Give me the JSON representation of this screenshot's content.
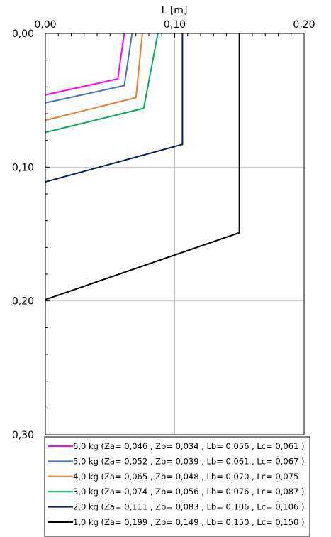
{
  "chart_data": {
    "type": "line",
    "x_axis_title": "L [m]",
    "x_ticks": [
      "0,00",
      "0,10",
      "0,20"
    ],
    "y_ticks": [
      "0,00",
      "0,10",
      "0,20",
      "0,30"
    ],
    "xlim": [
      0,
      0.2
    ],
    "ylim": [
      0,
      0.3
    ],
    "y_inverted": true,
    "x_axis_position": "top",
    "grid": true,
    "legend_position": "bottom-right",
    "series": [
      {
        "name": "6,0 kg (Za= 0,046 , Zb= 0,034 , Lb= 0,056 , Lc= 0,061 )",
        "color": "#ff00ff",
        "points": [
          [
            0.061,
            0.0
          ],
          [
            0.056,
            0.034
          ],
          [
            0.0,
            0.046
          ]
        ]
      },
      {
        "name": "5,0 kg (Za= 0,052 , Zb= 0,039 , Lb= 0,061 , Lc= 0,067 )",
        "color": "#4472c4",
        "points": [
          [
            0.067,
            0.0
          ],
          [
            0.061,
            0.039
          ],
          [
            0.0,
            0.052
          ]
        ]
      },
      {
        "name": "4,0 kg (Za= 0,065 , Zb= 0,048 , Lb= 0,070 , Lc= 0,075",
        "color": "#ed7d31",
        "points": [
          [
            0.075,
            0.0
          ],
          [
            0.07,
            0.048
          ],
          [
            0.0,
            0.065
          ]
        ]
      },
      {
        "name": "3,0 kg (Za= 0,074 , Zb= 0,056 , Lb= 0,076 , Lc= 0,087 )",
        "color": "#00b050",
        "points": [
          [
            0.087,
            0.0
          ],
          [
            0.076,
            0.056
          ],
          [
            0.0,
            0.074
          ]
        ]
      },
      {
        "name": "2,0 kg (Za= 0,111 , Zb= 0,083 , Lb= 0,106 , Lc= 0,106 )",
        "color": "#002060",
        "points": [
          [
            0.106,
            0.0
          ],
          [
            0.106,
            0.083
          ],
          [
            0.0,
            0.111
          ]
        ]
      },
      {
        "name": "1,0 kg (Za= 0,199 , Zb= 0,149 , Lb= 0,150 , Lc= 0,150 )",
        "color": "#000000",
        "points": [
          [
            0.15,
            0.0
          ],
          [
            0.15,
            0.149
          ],
          [
            0.0,
            0.199
          ]
        ]
      }
    ]
  }
}
